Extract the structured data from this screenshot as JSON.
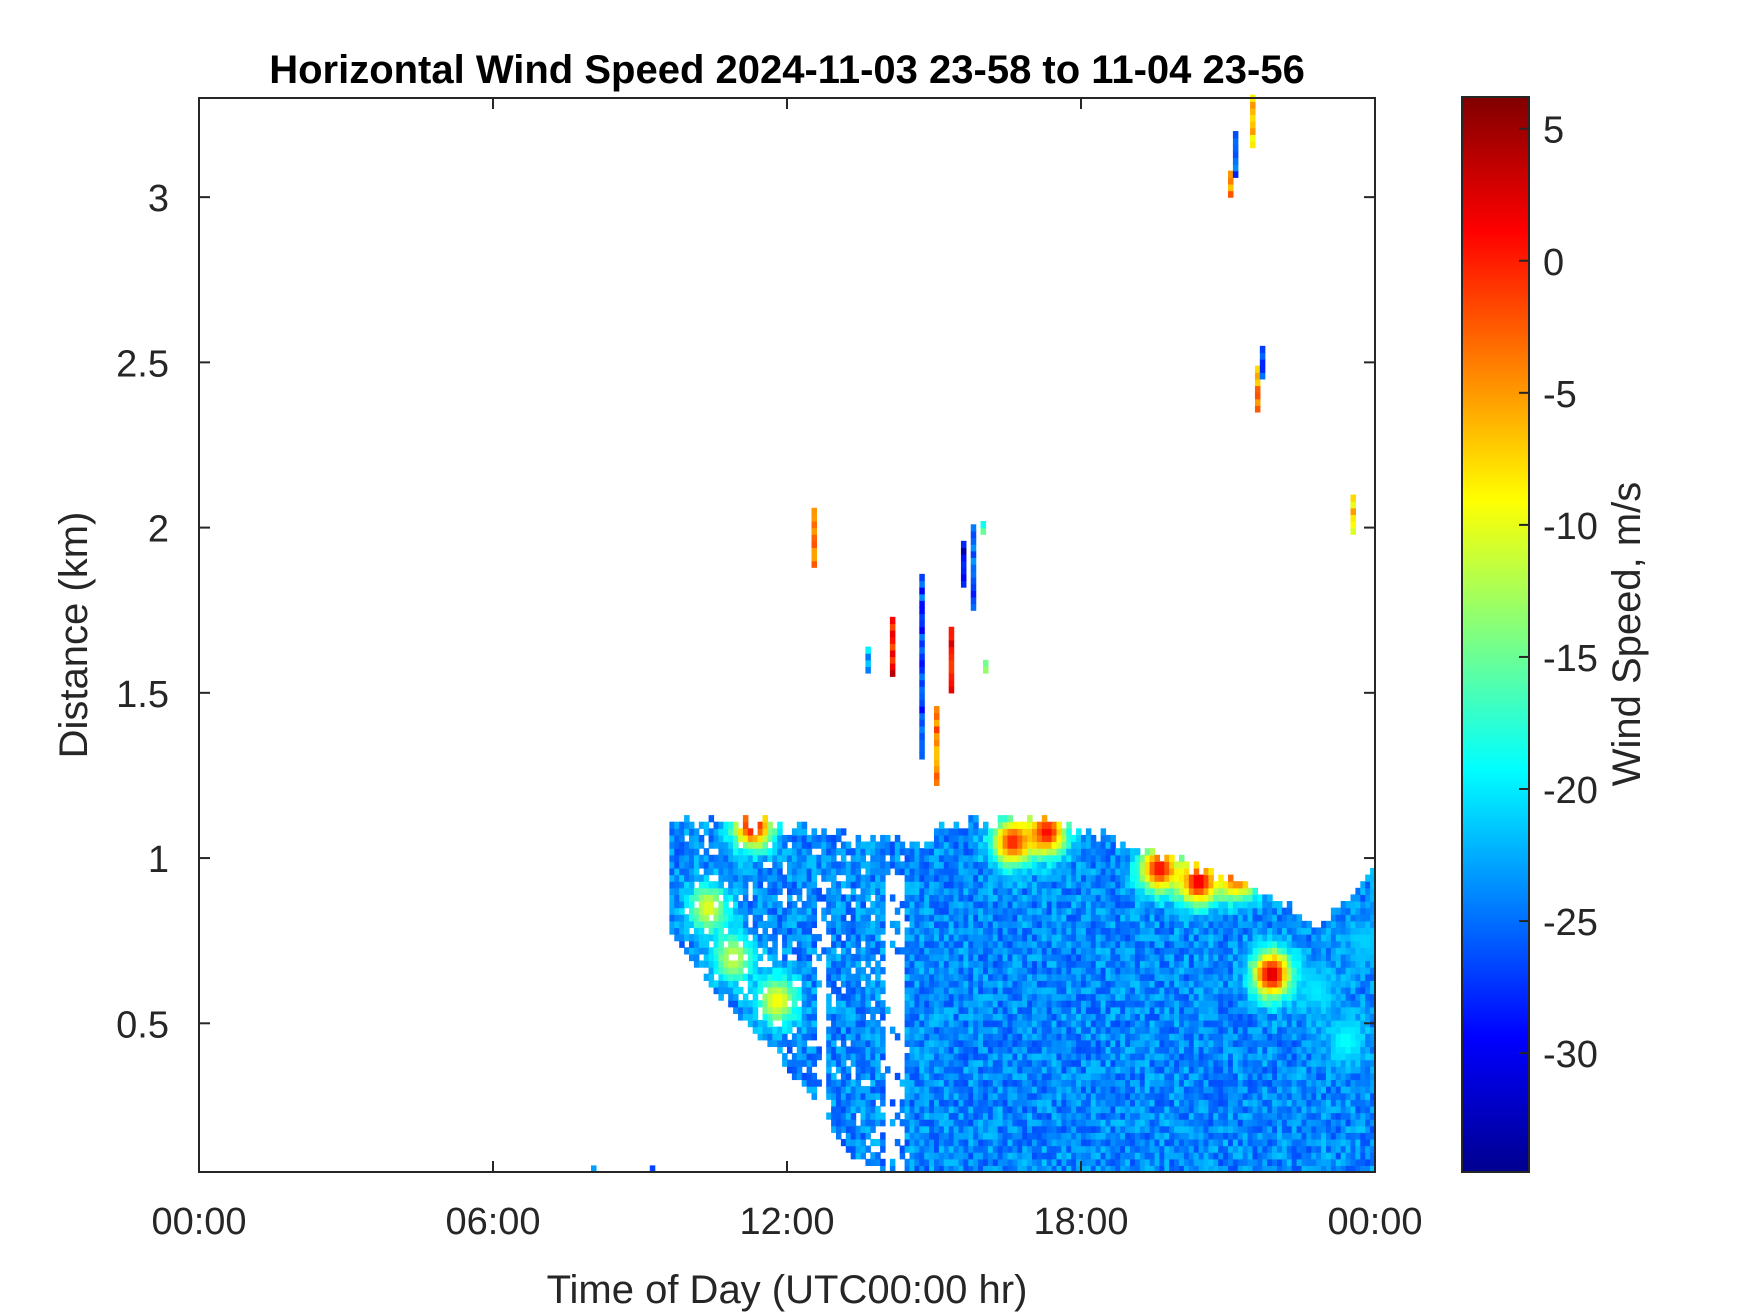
{
  "chart_data": {
    "type": "heatmap",
    "title": "Horizontal Wind Speed 2024-11-03 23-58 to 11-04 23-56",
    "xlabel": "Time of Day (UTC00:00 hr)",
    "ylabel": "Distance (km)",
    "colorbar_label": "Wind Speed, m/s",
    "xlim_hours": [
      0,
      24
    ],
    "ylim_km": [
      0.05,
      3.3
    ],
    "x_ticks": [
      {
        "hour": 0,
        "label": "00:00"
      },
      {
        "hour": 6,
        "label": "06:00"
      },
      {
        "hour": 12,
        "label": "12:00"
      },
      {
        "hour": 18,
        "label": "18:00"
      },
      {
        "hour": 24,
        "label": "00:00"
      }
    ],
    "y_ticks": [
      {
        "km": 0.5,
        "label": "0.5"
      },
      {
        "km": 1,
        "label": "1"
      },
      {
        "km": 1.5,
        "label": "1.5"
      },
      {
        "km": 2,
        "label": "2"
      },
      {
        "km": 2.5,
        "label": "2.5"
      },
      {
        "km": 3,
        "label": "3"
      }
    ],
    "clim_ms": [
      -34.5,
      6.2
    ],
    "colormap": "jet",
    "colorbar_ticks": [
      {
        "value": 5,
        "label": "5"
      },
      {
        "value": 0,
        "label": "0"
      },
      {
        "value": -5,
        "label": "-5"
      },
      {
        "value": -10,
        "label": "-10"
      },
      {
        "value": -15,
        "label": "-15"
      },
      {
        "value": -20,
        "label": "-20"
      },
      {
        "value": -25,
        "label": "-25"
      },
      {
        "value": -30,
        "label": "-30"
      }
    ],
    "grid": false,
    "cell_size": {
      "hours": 0.1,
      "km": 0.02
    },
    "background_wind_ms": -24,
    "data_region_top_km": [
      [
        9.6,
        1.1
      ],
      [
        11.2,
        1.1
      ],
      [
        14.4,
        1.04
      ],
      [
        14.8,
        1.02
      ],
      [
        15.2,
        1.1
      ],
      [
        17.5,
        1.1
      ],
      [
        19.0,
        1.03
      ],
      [
        20.5,
        0.95
      ],
      [
        21.6,
        0.9
      ],
      [
        22.2,
        0.85
      ],
      [
        22.8,
        0.78
      ],
      [
        23.3,
        0.85
      ],
      [
        24.0,
        0.95
      ]
    ],
    "data_region_bottom_km": [
      [
        9.6,
        0.78
      ],
      [
        10.5,
        0.6
      ],
      [
        11.5,
        0.45
      ],
      [
        12.5,
        0.28
      ],
      [
        13.3,
        0.1
      ],
      [
        14.0,
        0.05
      ],
      [
        24.0,
        0.05
      ]
    ],
    "wind_patches": [
      {
        "hour": 10.4,
        "km": 0.85,
        "wind_ms": -10
      },
      {
        "hour": 10.9,
        "km": 0.7,
        "wind_ms": -11
      },
      {
        "hour": 11.8,
        "km": 0.57,
        "wind_ms": -9
      },
      {
        "hour": 11.3,
        "km": 1.1,
        "wind_ms": 2
      },
      {
        "hour": 16.6,
        "km": 1.05,
        "wind_ms": 0
      },
      {
        "hour": 17.3,
        "km": 1.08,
        "wind_ms": 1
      },
      {
        "hour": 19.6,
        "km": 0.97,
        "wind_ms": 1
      },
      {
        "hour": 20.4,
        "km": 0.93,
        "wind_ms": 2
      },
      {
        "hour": 21.2,
        "km": 0.95,
        "wind_ms": 0
      },
      {
        "hour": 21.9,
        "km": 0.65,
        "wind_ms": 3
      },
      {
        "hour": 22.8,
        "km": 0.6,
        "wind_ms": -20
      },
      {
        "hour": 23.4,
        "km": 0.45,
        "wind_ms": -19
      },
      {
        "hour": 23.8,
        "km": 0.75,
        "wind_ms": -21
      }
    ],
    "isolated_streaks": [
      {
        "hour": 12.5,
        "km_start": 1.88,
        "km_end": 2.06,
        "wind_ms": -3
      },
      {
        "hour": 13.6,
        "km_start": 1.56,
        "km_end": 1.64,
        "wind_ms": -22
      },
      {
        "hour": 14.1,
        "km_start": 1.55,
        "km_end": 1.72,
        "wind_ms": 1
      },
      {
        "hour": 14.7,
        "km_start": 1.3,
        "km_end": 1.85,
        "wind_ms": -27
      },
      {
        "hour": 15.0,
        "km_start": 1.22,
        "km_end": 1.45,
        "wind_ms": -4
      },
      {
        "hour": 15.3,
        "km_start": 1.5,
        "km_end": 1.7,
        "wind_ms": 1
      },
      {
        "hour": 15.55,
        "km_start": 1.82,
        "km_end": 1.95,
        "wind_ms": -30
      },
      {
        "hour": 15.75,
        "km_start": 1.75,
        "km_end": 2.0,
        "wind_ms": -26
      },
      {
        "hour": 15.95,
        "km_start": 1.98,
        "km_end": 2.02,
        "wind_ms": -17
      },
      {
        "hour": 16.0,
        "km_start": 1.56,
        "km_end": 1.6,
        "wind_ms": -16
      },
      {
        "hour": 21.0,
        "km_start": 3.0,
        "km_end": 3.08,
        "wind_ms": -5
      },
      {
        "hour": 21.1,
        "km_start": 3.06,
        "km_end": 3.2,
        "wind_ms": -26
      },
      {
        "hour": 21.45,
        "km_start": 3.15,
        "km_end": 3.3,
        "wind_ms": -7
      },
      {
        "hour": 21.55,
        "km_start": 2.35,
        "km_end": 2.48,
        "wind_ms": -5
      },
      {
        "hour": 21.65,
        "km_start": 2.45,
        "km_end": 2.55,
        "wind_ms": -27
      },
      {
        "hour": 23.5,
        "km_start": 1.98,
        "km_end": 2.1,
        "wind_ms": -8
      },
      {
        "hour": 8.0,
        "km_start": 0.05,
        "km_end": 0.07,
        "wind_ms": -26
      },
      {
        "hour": 9.2,
        "km_start": 0.05,
        "km_end": 0.07,
        "wind_ms": -27
      }
    ],
    "gap_columns_hours": [
      12.7,
      14.1,
      14.3
    ]
  }
}
